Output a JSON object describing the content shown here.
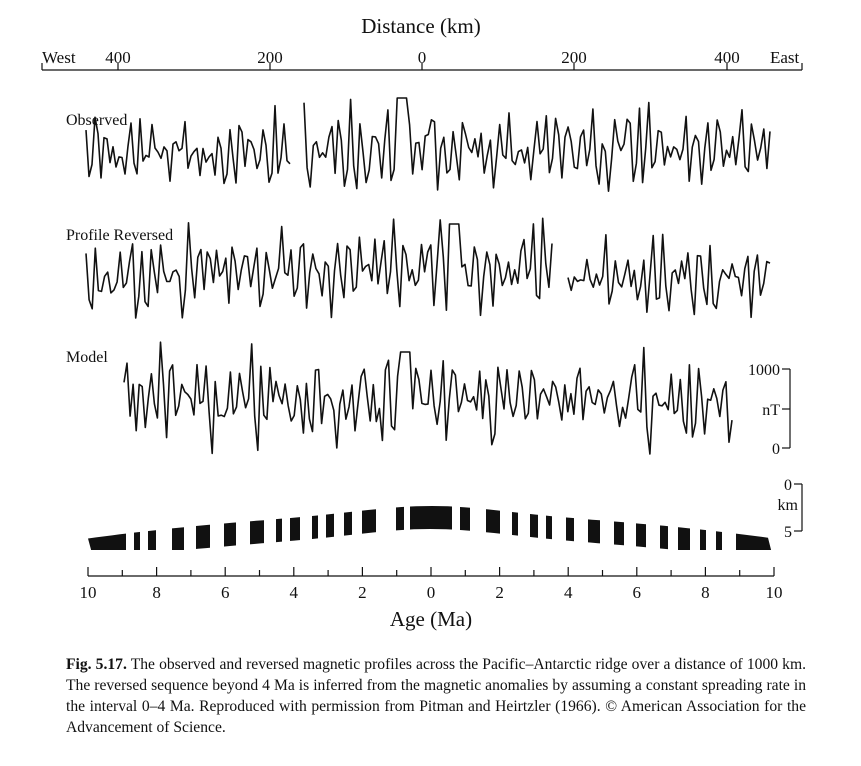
{
  "distance_axis": {
    "title": "Distance (km)",
    "west_label": "West",
    "east_label": "East",
    "tick_labels": [
      "400",
      "200",
      "0",
      "200",
      "400"
    ]
  },
  "profiles": {
    "observed": "Observed",
    "reversed": "Profile Reversed",
    "model": "Model"
  },
  "nT_scale": {
    "top": "1000",
    "unit": "nT",
    "bottom": "0"
  },
  "depth_scale": {
    "top": "0",
    "unit": "km",
    "bottom": "5"
  },
  "age_axis": {
    "title": "Age (Ma)",
    "tick_labels": [
      "10",
      "8",
      "6",
      "4",
      "2",
      "0",
      "2",
      "4",
      "6",
      "8",
      "10"
    ]
  },
  "caption": {
    "label": "Fig. 5.17.",
    "text": "The observed and reversed magnetic profiles across the Pacific–Antarctic ridge over a distance of 1000 km. The reversed sequence beyond 4 Ma is inferred from the magnetic anomalies by assuming a constant spreading rate in the interval 0–4 Ma. Reproduced with permission from Pitman and Heirtzler (1966). © American Association for the Advancement of Science."
  },
  "colors": {
    "ink": "#111111",
    "paper": "#ffffff"
  }
}
